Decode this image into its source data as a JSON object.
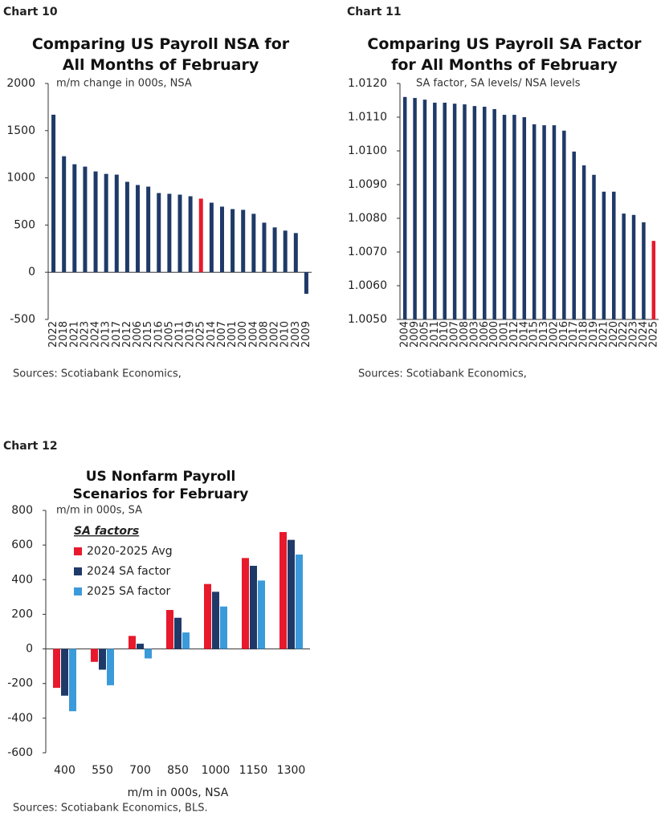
{
  "chart_data": [
    {
      "type": "bar",
      "chart_label": "Chart 10",
      "title": "Comparing US Payroll NSA for All Months of February",
      "subtitle": "m/m change in 000s, NSA",
      "categories": [
        "2022",
        "2018",
        "2021",
        "2023",
        "2024",
        "2013",
        "2017",
        "2012",
        "2006",
        "2015",
        "2016",
        "2005",
        "2011",
        "2019",
        "2025",
        "2014",
        "2007",
        "2001",
        "2000",
        "2004",
        "2008",
        "2002",
        "2010",
        "2003",
        "2009"
      ],
      "values": [
        1669,
        1229,
        1144,
        1119,
        1068,
        1042,
        1034,
        958,
        924,
        907,
        839,
        831,
        822,
        805,
        780,
        737,
        695,
        669,
        661,
        619,
        525,
        475,
        441,
        415,
        -229
      ],
      "colors": [
        "#1f3a68",
        "#1f3a68",
        "#1f3a68",
        "#1f3a68",
        "#1f3a68",
        "#1f3a68",
        "#1f3a68",
        "#1f3a68",
        "#1f3a68",
        "#1f3a68",
        "#1f3a68",
        "#1f3a68",
        "#1f3a68",
        "#1f3a68",
        "#e8192c",
        "#1f3a68",
        "#1f3a68",
        "#1f3a68",
        "#1f3a68",
        "#1f3a68",
        "#1f3a68",
        "#1f3a68",
        "#1f3a68",
        "#1f3a68",
        "#1f3a68"
      ],
      "ylim": [
        -500,
        2000
      ],
      "yticks": [
        -500,
        0,
        500,
        1000,
        1500,
        2000
      ],
      "source": "Sources: Scotiabank Economics,"
    },
    {
      "type": "bar",
      "chart_label": "Chart 11",
      "title": "Comparing US Payroll SA Factor for All Months of February",
      "subtitle": "SA factor, SA levels/ NSA levels",
      "categories": [
        "2004",
        "2009",
        "2005",
        "2011",
        "2010",
        "2007",
        "2008",
        "2003",
        "2006",
        "2000",
        "2001",
        "2012",
        "2014",
        "2015",
        "2013",
        "2002",
        "2016",
        "2017",
        "2018",
        "2019",
        "2021",
        "2020",
        "2022",
        "2023",
        "2024",
        "2025"
      ],
      "values": [
        1.0116,
        1.01157,
        1.01152,
        1.01143,
        1.01143,
        1.0114,
        1.01138,
        1.01133,
        1.01131,
        1.01124,
        1.01107,
        1.01107,
        1.011,
        1.01079,
        1.01076,
        1.01076,
        1.0106,
        1.00998,
        1.00957,
        1.00929,
        1.00879,
        1.00879,
        1.00814,
        1.0081,
        1.00788,
        1.00733
      ],
      "colors": [
        "#1f3a68",
        "#1f3a68",
        "#1f3a68",
        "#1f3a68",
        "#1f3a68",
        "#1f3a68",
        "#1f3a68",
        "#1f3a68",
        "#1f3a68",
        "#1f3a68",
        "#1f3a68",
        "#1f3a68",
        "#1f3a68",
        "#1f3a68",
        "#1f3a68",
        "#1f3a68",
        "#1f3a68",
        "#1f3a68",
        "#1f3a68",
        "#1f3a68",
        "#1f3a68",
        "#1f3a68",
        "#1f3a68",
        "#1f3a68",
        "#1f3a68",
        "#e8192c"
      ],
      "ylim": [
        1.005,
        1.012
      ],
      "yticks": [
        {
          "value": 1.005,
          "label": "1.0050"
        },
        {
          "value": 1.006,
          "label": "1.0060"
        },
        {
          "value": 1.007,
          "label": "1.0070"
        },
        {
          "value": 1.008,
          "label": "1.0080"
        },
        {
          "value": 1.009,
          "label": "1.0090"
        },
        {
          "value": 1.01,
          "label": "1.0100"
        },
        {
          "value": 1.011,
          "label": "1.0110"
        },
        {
          "value": 1.012,
          "label": "1.0120"
        }
      ],
      "source": "Sources: Scotiabank Economics,"
    },
    {
      "type": "bar",
      "chart_label": "Chart 12",
      "title": "US Nonfarm Payroll Scenarios for February",
      "subtitle": "m/m in 000s, SA",
      "x_label": "m/m in 000s, NSA",
      "legend_title": "SA factors",
      "categories": [
        "400",
        "550",
        "700",
        "850",
        "1000",
        "1150",
        "1300"
      ],
      "series": [
        {
          "name": "2020-2025 Avg",
          "color": "#e8192c",
          "values": [
            -225,
            -75,
            75,
            225,
            375,
            525,
            675
          ]
        },
        {
          "name": "2024 SA factor",
          "color": "#1f3a68",
          "values": [
            -270,
            -120,
            30,
            180,
            330,
            480,
            630
          ]
        },
        {
          "name": "2025 SA factor",
          "color": "#3b9ad9",
          "values": [
            -360,
            -210,
            -55,
            95,
            245,
            395,
            545
          ]
        }
      ],
      "ylim": [
        -600,
        800
      ],
      "yticks": [
        -600,
        -400,
        -200,
        0,
        200,
        400,
        600,
        800
      ],
      "source": "Sources: Scotiabank Economics, BLS."
    }
  ]
}
